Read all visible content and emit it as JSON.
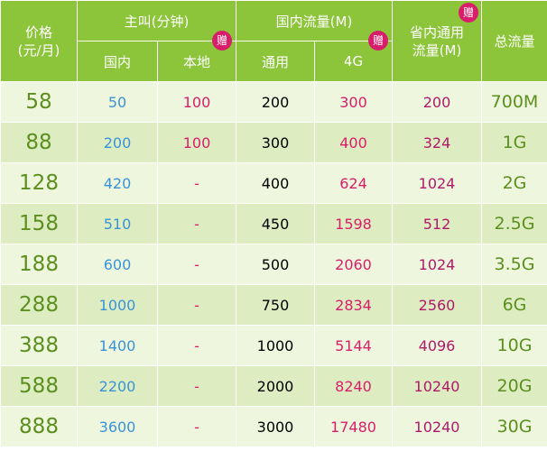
{
  "header": {
    "price_line1": "价格",
    "price_line2": "(元/月)",
    "call_group": "主叫(分钟)",
    "national_data_group": "国内流量(M)",
    "provincial_line1": "省内通用",
    "provincial_line2": "流量(M)",
    "total": "总流量",
    "domestic": "国内",
    "local": "本地",
    "general": "通用",
    "fourg": "4G",
    "gift": "赠"
  },
  "rows": [
    {
      "price": "58",
      "domestic": "50",
      "local": "100",
      "general": "200",
      "fourg": "300",
      "provincial": "200",
      "total": "700M"
    },
    {
      "price": "88",
      "domestic": "200",
      "local": "100",
      "general": "300",
      "fourg": "400",
      "provincial": "324",
      "total": "1G"
    },
    {
      "price": "128",
      "domestic": "420",
      "local": "-",
      "general": "400",
      "fourg": "624",
      "provincial": "1024",
      "total": "2G"
    },
    {
      "price": "158",
      "domestic": "510",
      "local": "-",
      "general": "450",
      "fourg": "1598",
      "provincial": "512",
      "total": "2.5G"
    },
    {
      "price": "188",
      "domestic": "600",
      "local": "-",
      "general": "500",
      "fourg": "2060",
      "provincial": "1024",
      "total": "3.5G"
    },
    {
      "price": "288",
      "domestic": "1000",
      "local": "-",
      "general": "750",
      "fourg": "2834",
      "provincial": "2560",
      "total": "6G"
    },
    {
      "price": "388",
      "domestic": "1400",
      "local": "-",
      "general": "1000",
      "fourg": "5144",
      "provincial": "4096",
      "total": "10G"
    },
    {
      "price": "588",
      "domestic": "2200",
      "local": "-",
      "general": "2000",
      "fourg": "8240",
      "provincial": "10240",
      "total": "20G"
    },
    {
      "price": "888",
      "domestic": "3600",
      "local": "-",
      "general": "3000",
      "fourg": "17480",
      "provincial": "10240",
      "total": "30G"
    }
  ]
}
